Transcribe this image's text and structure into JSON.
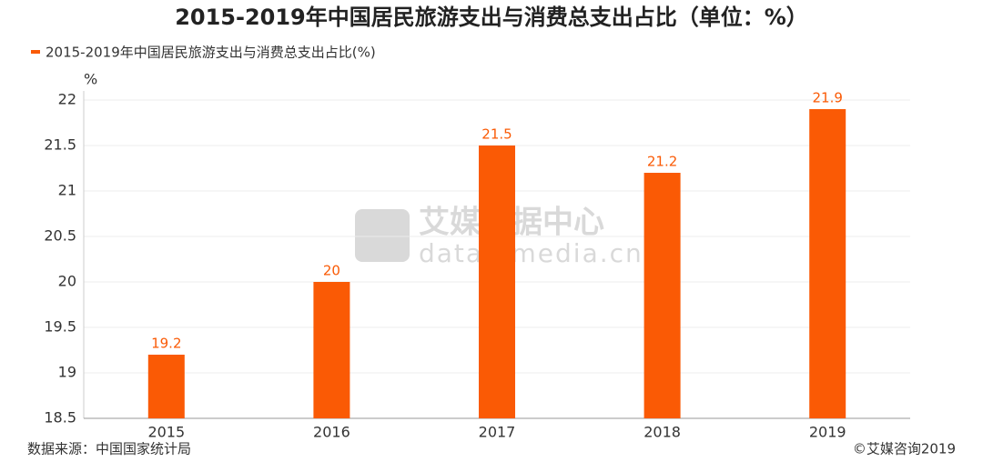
{
  "chart_data": {
    "type": "bar",
    "title": "2015-2019年中国居民旅游支出与消费总支出占比（单位：%）",
    "y_unit": "%",
    "categories": [
      "2015",
      "2016",
      "2017",
      "2018",
      "2019"
    ],
    "series": [
      {
        "name": "2015-2019年中国居民旅游支出与消费总支出占比(%)",
        "color": "#fa5a05",
        "values": [
          19.2,
          20,
          21.5,
          21.2,
          21.9
        ]
      }
    ],
    "ylim": [
      18.5,
      22
    ],
    "yticks": [
      18.5,
      19,
      19.5,
      20,
      20.5,
      21,
      21.5,
      22
    ],
    "grid": true,
    "legend": "top-left",
    "source": "数据来源：中国国家统计局",
    "copyright": "©艾媒咨询2019",
    "watermark": [
      "艾媒数据中心",
      "data.iimedia.cn"
    ]
  }
}
